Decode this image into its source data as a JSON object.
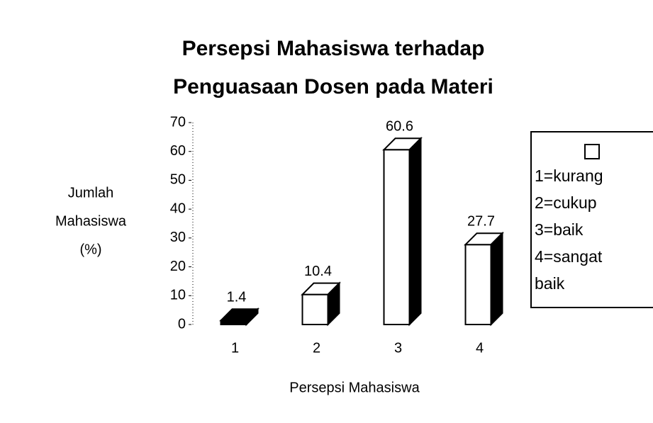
{
  "chart_data": {
    "type": "bar",
    "title": [
      "Persepsi Mahasiswa terhadap",
      "Penguasaan Dosen pada Materi"
    ],
    "ylabel": [
      "Jumlah",
      "Mahasiswa",
      "(%)"
    ],
    "xlabel": "Persepsi Mahasiswa",
    "categories": [
      "1",
      "2",
      "3",
      "4"
    ],
    "values": [
      1.4,
      10.4,
      60.6,
      27.7
    ],
    "colors": [
      "#000000",
      "#ffffff",
      "#ffffff",
      "#ffffff"
    ],
    "ylim": [
      0,
      70
    ],
    "yticks": [
      0,
      10,
      20,
      30,
      40,
      50,
      60,
      70
    ],
    "legend": [
      "1=kurang",
      "2=cukup",
      "3=baik",
      "4=sangat baik"
    ]
  }
}
